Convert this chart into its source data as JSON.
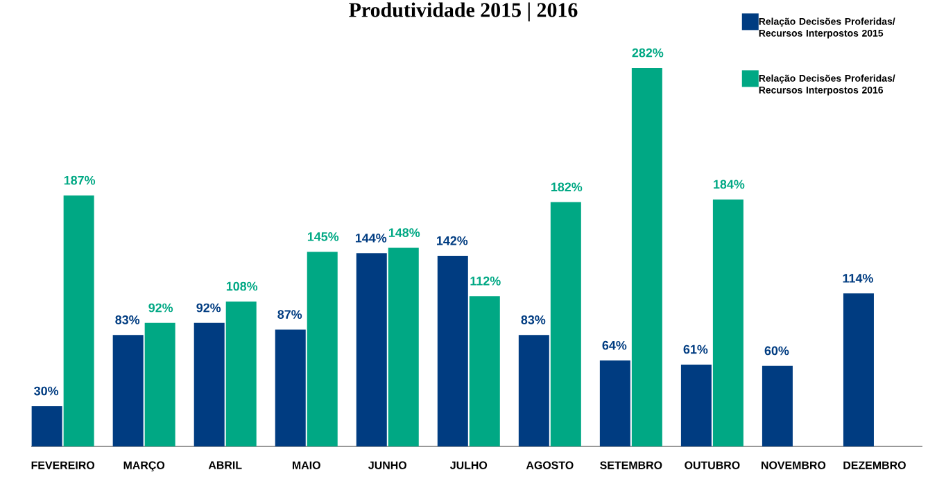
{
  "chart_data": {
    "type": "bar",
    "title": "Produtividade 2015 | 2016",
    "categories": [
      "FEVEREIRO",
      "MARÇO",
      "ABRIL",
      "MAIO",
      "JUNHO",
      "JULHO",
      "AGOSTO",
      "SETEMBRO",
      "OUTUBRO",
      "NOVEMBRO",
      "DEZEMBRO"
    ],
    "series": [
      {
        "name": "Relação Decisões Proferidas/ Recursos Interpostos 2015",
        "color": "#003c81",
        "values": [
          30,
          83,
          92,
          87,
          144,
          142,
          83,
          64,
          61,
          60,
          114
        ],
        "value_labels": [
          "30%",
          "83%",
          "92%",
          "87%",
          "144%",
          "142%",
          "83%",
          "64%",
          "61%",
          "60%",
          "114%"
        ]
      },
      {
        "name": "Relação Decisões Proferidas/ Recursos Interpostos 2016",
        "color": "#00a884",
        "values": [
          187,
          92,
          108,
          145,
          148,
          112,
          182,
          282,
          184,
          null,
          null
        ],
        "value_labels": [
          "187%",
          "92%",
          "108%",
          "145%",
          "148%",
          "112%",
          "182%",
          "282%",
          "184%",
          null,
          null
        ]
      }
    ],
    "legend": "top right"
  }
}
